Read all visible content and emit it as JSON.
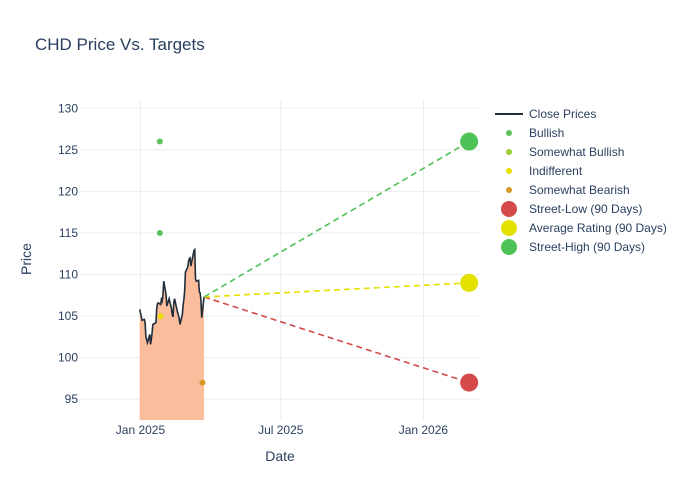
{
  "chart_data": {
    "type": "line",
    "title": "CHD Price Vs. Targets",
    "xlabel": "Date",
    "ylabel": "Price",
    "x_ticks": [
      "2025-01-01",
      "2025-07-01",
      "2026-01-01"
    ],
    "x_tick_labels": [
      "Jan 2025",
      "Jul 2025",
      "Jan 2026"
    ],
    "xlim": [
      "2024-10-15",
      "2026-03-15"
    ],
    "y_ticks": [
      95,
      100,
      105,
      110,
      115,
      120,
      125,
      130
    ],
    "ylim": [
      92.5,
      131
    ],
    "grid": true,
    "legend_position": "top-right outside",
    "close_prices": {
      "name": "Close Prices",
      "color": "#1f2d3d",
      "fill_color": "#fbbd9b",
      "x": [
        "2024-12-31",
        "2025-01-02",
        "2025-01-03",
        "2025-01-06",
        "2025-01-07",
        "2025-01-08",
        "2025-01-10",
        "2025-01-13",
        "2025-01-14",
        "2025-01-15",
        "2025-01-16",
        "2025-01-17",
        "2025-01-21",
        "2025-01-22",
        "2025-01-23",
        "2025-01-24",
        "2025-01-27",
        "2025-01-28",
        "2025-01-29",
        "2025-01-30",
        "2025-01-31",
        "2025-02-03",
        "2025-02-04",
        "2025-02-05",
        "2025-02-06",
        "2025-02-07",
        "2025-02-10",
        "2025-02-11",
        "2025-02-12",
        "2025-02-13",
        "2025-02-14",
        "2025-02-18",
        "2025-02-19",
        "2025-02-20",
        "2025-02-21",
        "2025-02-24",
        "2025-02-25",
        "2025-02-26",
        "2025-02-27",
        "2025-02-28",
        "2025-03-03",
        "2025-03-04",
        "2025-03-05",
        "2025-03-06",
        "2025-03-07",
        "2025-03-10",
        "2025-03-11",
        "2025-03-12",
        "2025-03-13",
        "2025-03-14",
        "2025-03-17",
        "2025-03-18",
        "2025-03-19",
        "2025-03-20",
        "2025-03-21",
        "2025-03-24"
      ],
      "y": [
        105.8,
        105.0,
        104.5,
        104.6,
        104.2,
        102.5,
        101.8,
        102.8,
        101.6,
        102.2,
        103.0,
        104.0,
        104.2,
        106.0,
        106.5,
        106.6,
        106.4,
        107.0,
        106.8,
        107.5,
        109.2,
        107.6,
        106.2,
        106.5,
        106.8,
        107.1,
        105.9,
        105.2,
        104.9,
        106.6,
        107.1,
        105.4,
        105.1,
        104.7,
        104.0,
        105.2,
        106.3,
        107.0,
        108.0,
        110.3,
        110.9,
        111.6,
        111.9,
        112.0,
        111.0,
        112.4,
        112.9,
        113.0,
        109.5,
        109.2,
        109.3,
        107.9,
        107.8,
        106.9,
        104.8,
        107.3
      ]
    },
    "ratings": [
      {
        "name": "Bullish",
        "color": "#5cc15f",
        "x": [
          "2025-01-26",
          "2025-01-26"
        ],
        "y": [
          126,
          115
        ]
      },
      {
        "name": "Somewhat Bullish",
        "color": "#9acd32",
        "x": [],
        "y": []
      },
      {
        "name": "Indifferent",
        "color": "#e8df00",
        "x": [
          "2025-01-27"
        ],
        "y": [
          105
        ]
      },
      {
        "name": "Somewhat Bearish",
        "color": "#d69a22",
        "x": [
          "2025-03-22"
        ],
        "y": [
          97
        ]
      }
    ],
    "targets": {
      "start_x": "2025-03-24",
      "start_y": 107.3,
      "end_x": "2026-03-01",
      "series": [
        {
          "name": "Street-Low (90 Days)",
          "value": 97,
          "color": "#d44a4a"
        },
        {
          "name": "Average Rating (90 Days)",
          "value": 109,
          "color": "#e4e000"
        },
        {
          "name": "Street-High (90 Days)",
          "value": 126,
          "color": "#4fc257"
        }
      ]
    }
  }
}
